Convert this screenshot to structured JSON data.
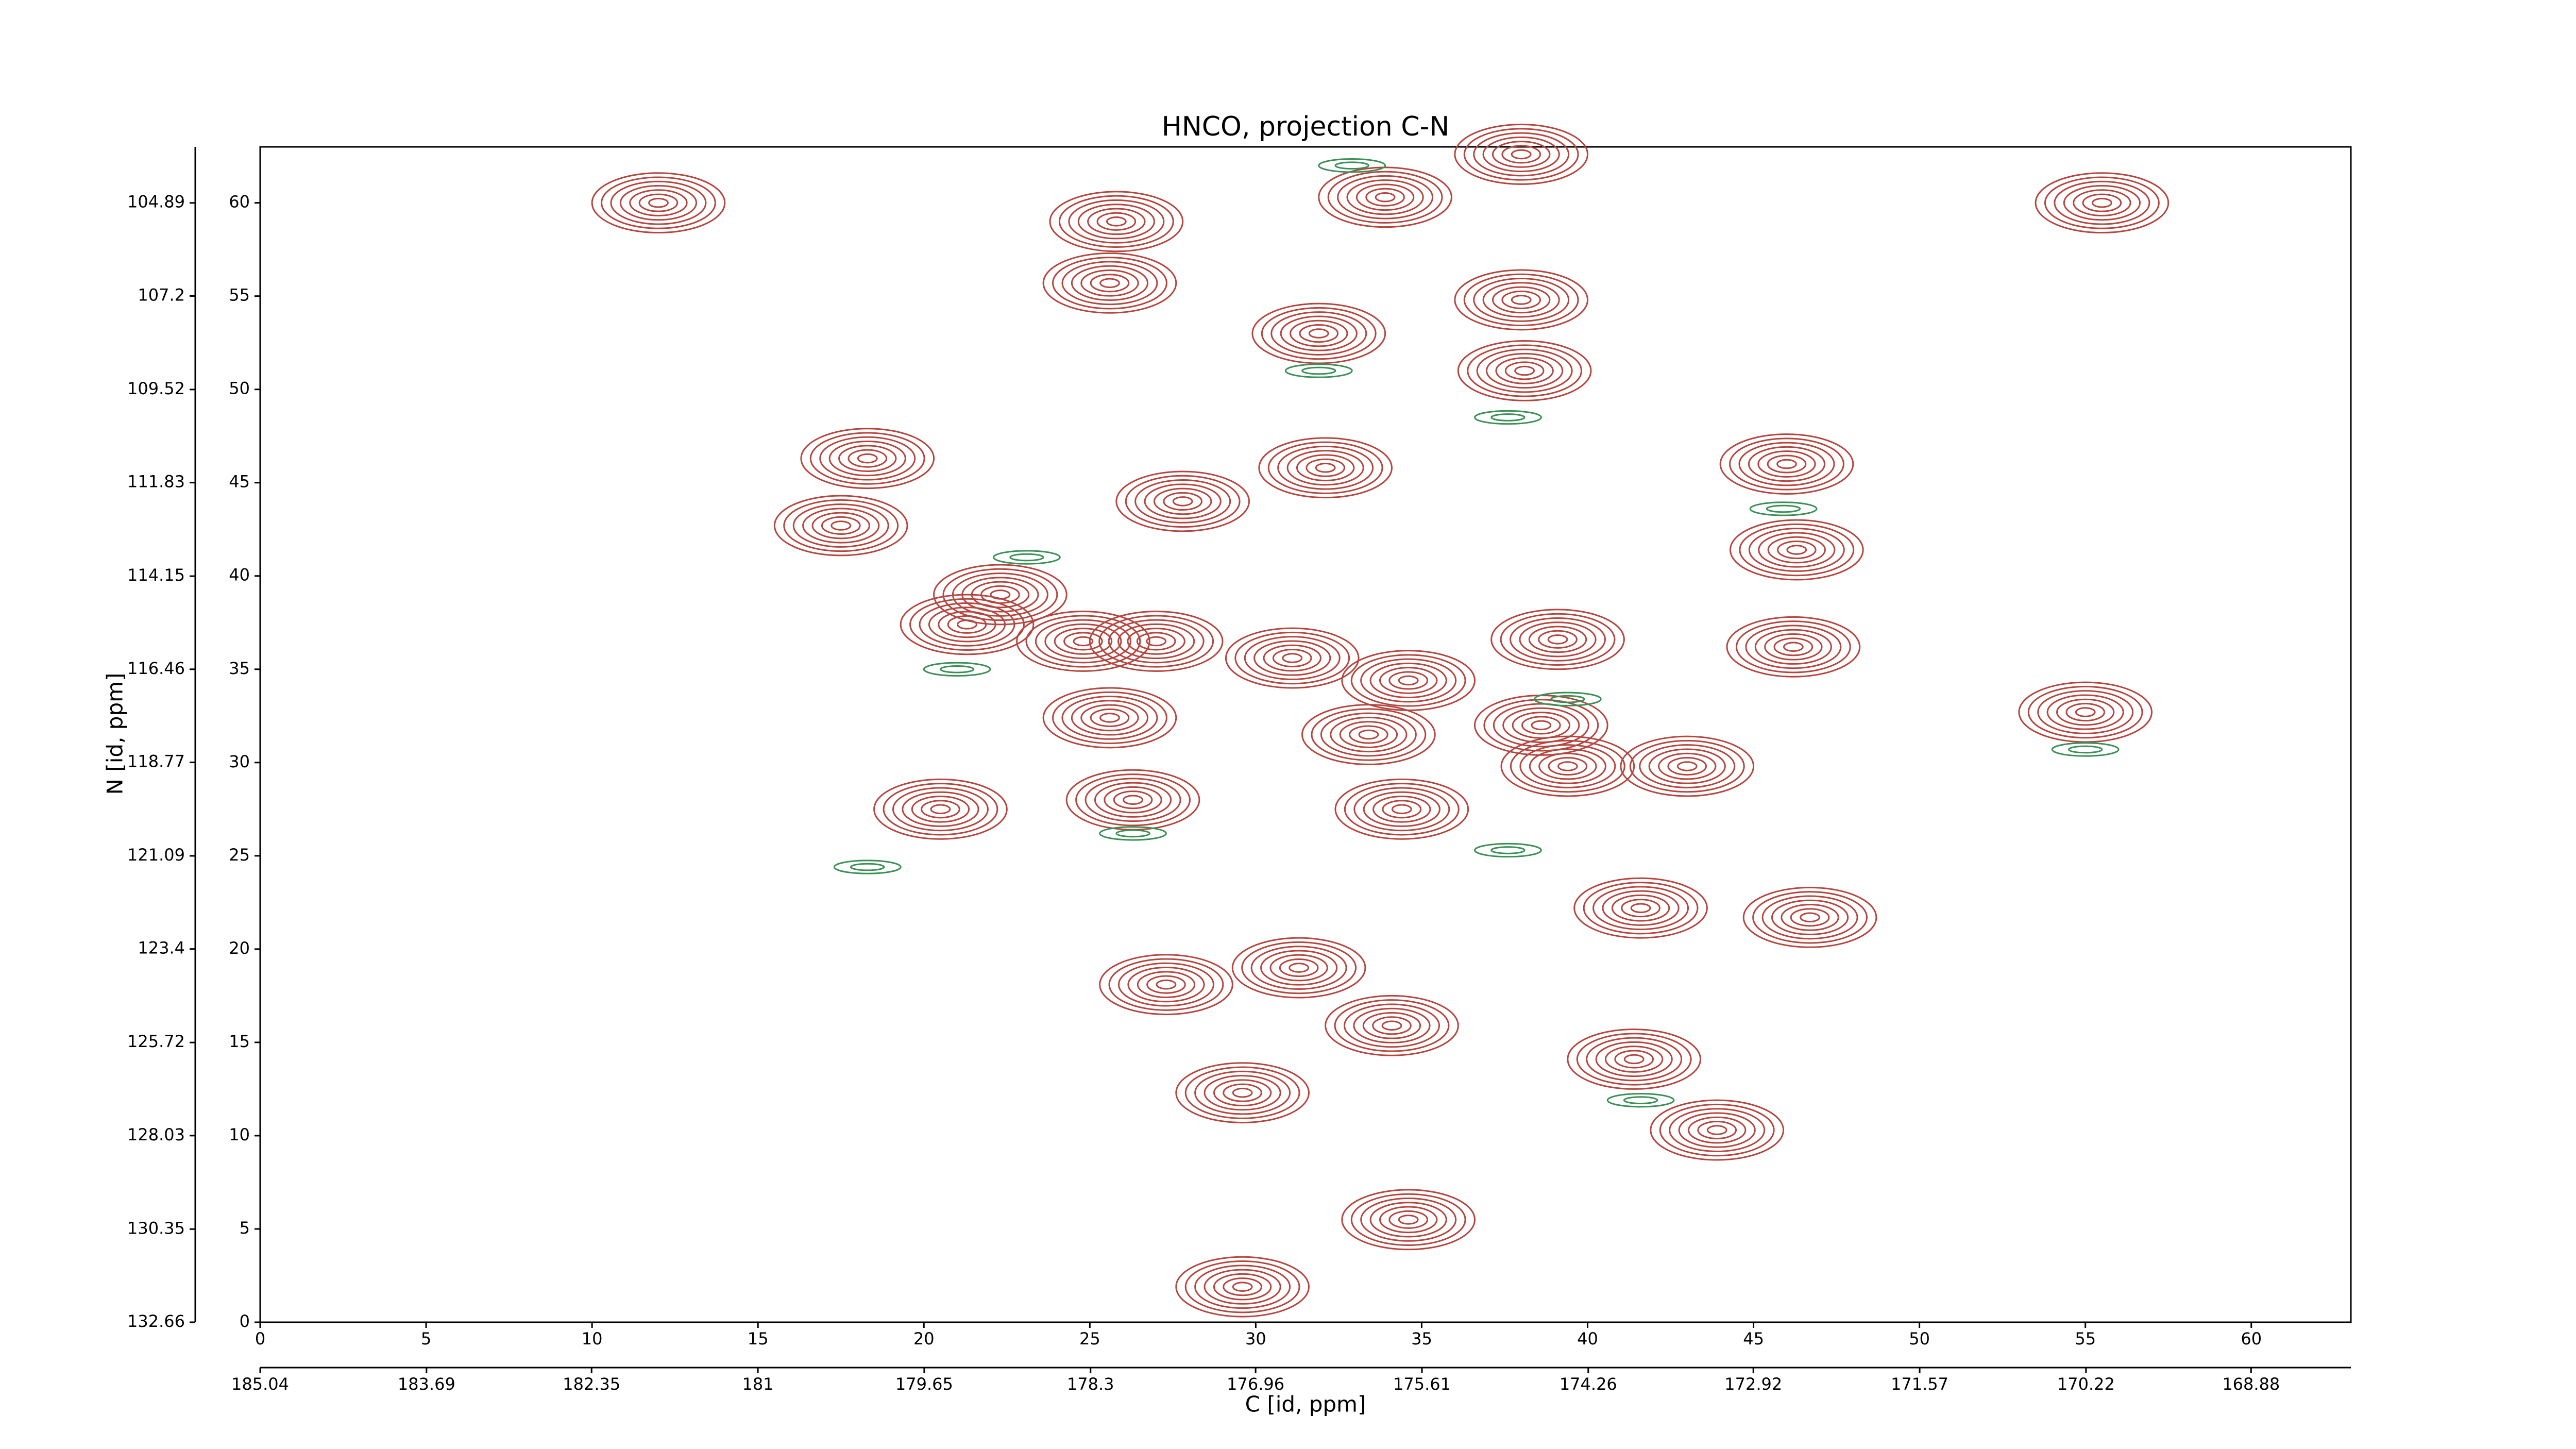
{
  "chart_data": {
    "type": "contour",
    "title": "HNCO, projection C-N",
    "xlabel": "C [id, ppm]",
    "ylabel": "N [id, ppm]",
    "xlim": [
      0,
      63
    ],
    "ylim": [
      0,
      63
    ],
    "xticks": [
      0,
      5,
      10,
      15,
      20,
      25,
      30,
      35,
      40,
      45,
      50,
      55,
      60
    ],
    "yticks": [
      0,
      5,
      10,
      15,
      20,
      25,
      30,
      35,
      40,
      45,
      50,
      55,
      60
    ],
    "x2lim": [
      185.04,
      168.07
    ],
    "x2ticks": [
      185.04,
      183.69,
      182.35,
      181.0,
      179.65,
      178.3,
      176.96,
      175.61,
      174.26,
      172.92,
      171.57,
      170.22,
      168.88
    ],
    "y2lim": [
      132.66,
      103.5
    ],
    "y2ticks": [
      132.66,
      130.35,
      128.03,
      125.72,
      123.4,
      121.09,
      118.77,
      116.46,
      114.15,
      111.83,
      109.52,
      107.2,
      104.89
    ],
    "series": [
      {
        "color": "#b5453f",
        "x": [
          33.9,
          25.8,
          25.6,
          38,
          38,
          38.1,
          31.9,
          32.1,
          27.8,
          18.3,
          17.5,
          46,
          46.3,
          46.2,
          39.1,
          22.3,
          21.3,
          24.8,
          27,
          31.1,
          34.6,
          55,
          25.6,
          38.6,
          20.5,
          26.3,
          34.4,
          43,
          39.4,
          33.4,
          46.7,
          41.6,
          27.3,
          31.3,
          34.1,
          41.4,
          29.6,
          43.9,
          34.6,
          29.6,
          12,
          55.5
        ],
        "y": [
          60.3,
          59,
          55.7,
          62.6,
          54.8,
          51,
          53,
          45.8,
          44,
          46.3,
          42.7,
          46,
          41.4,
          36.2,
          36.6,
          39,
          37.4,
          36.5,
          36.5,
          35.6,
          34.4,
          32.7,
          32.4,
          32,
          27.5,
          28,
          27.5,
          29.8,
          29.8,
          31.5,
          21.7,
          22.2,
          18.1,
          19,
          15.9,
          14.1,
          12.3,
          10.3,
          5.5,
          1.9,
          60,
          60
        ]
      },
      {
        "color": "#3a8f55",
        "x": [
          32.9,
          37.6,
          45.9,
          23.1,
          21,
          39.4,
          31.9,
          37.6,
          41.6,
          18.3,
          26.3,
          55
        ],
        "y": [
          62,
          48.5,
          43.6,
          41,
          35,
          33.4,
          51,
          25.3,
          11.9,
          24.4,
          26.2,
          30.7
        ]
      }
    ]
  }
}
